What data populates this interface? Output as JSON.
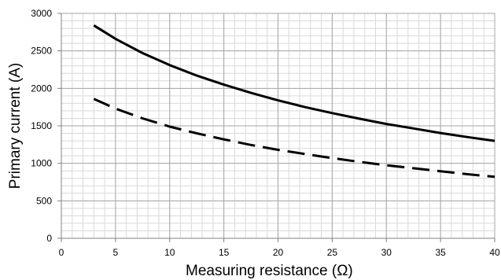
{
  "chart_data": {
    "type": "line",
    "title": "",
    "xlabel": "Measuring resistance (Ω)",
    "ylabel": "Primary current (A)",
    "xlim": [
      0,
      40
    ],
    "ylim": [
      0,
      3000
    ],
    "x_ticks": [
      0,
      5,
      10,
      15,
      20,
      25,
      30,
      35,
      40
    ],
    "y_ticks": [
      0,
      500,
      1000,
      1500,
      2000,
      2500,
      3000
    ],
    "x_minor_step": 1,
    "y_minor_step": 100,
    "grid": true,
    "legend": "none",
    "series": [
      {
        "style": "solid",
        "color": "#000000",
        "x": [
          3,
          5,
          7.5,
          10,
          12.5,
          15,
          17.5,
          20,
          22.5,
          25,
          27.5,
          30,
          32.5,
          35,
          37.5,
          40
        ],
        "y": [
          2840,
          2660,
          2470,
          2310,
          2170,
          2050,
          1940,
          1840,
          1750,
          1670,
          1595,
          1525,
          1465,
          1405,
          1350,
          1300
        ]
      },
      {
        "style": "dashed",
        "color": "#000000",
        "x": [
          3,
          5,
          7.5,
          10,
          12.5,
          15,
          17.5,
          20,
          22.5,
          25,
          27.5,
          30,
          32.5,
          35,
          37.5,
          40
        ],
        "y": [
          1860,
          1730,
          1600,
          1490,
          1400,
          1320,
          1245,
          1180,
          1125,
          1070,
          1020,
          975,
          935,
          895,
          855,
          820
        ]
      }
    ]
  }
}
